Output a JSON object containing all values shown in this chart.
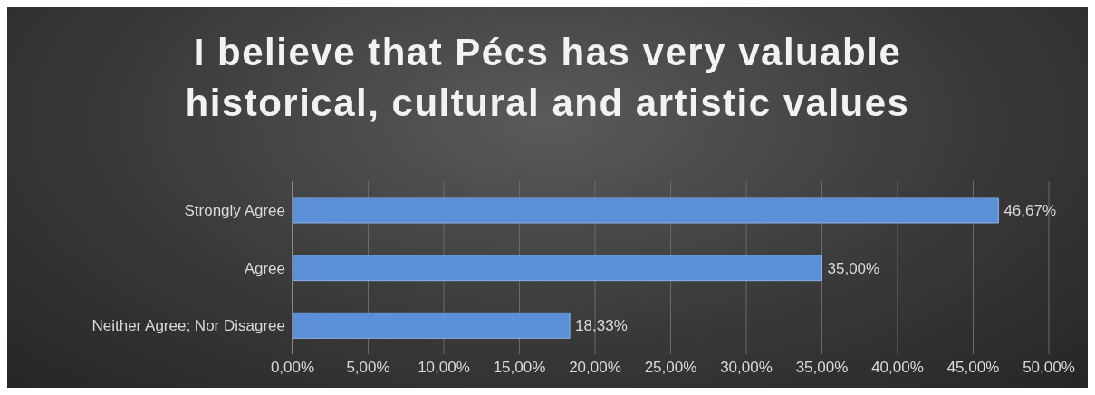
{
  "chart_data": {
    "type": "bar",
    "orientation": "horizontal",
    "title": "I believe that Pécs has very valuable historical, cultural and artistic values",
    "categories": [
      "Strongly Agree",
      "Agree",
      "Neither Agree; Nor Disagree"
    ],
    "values": [
      46.67,
      35.0,
      18.33
    ],
    "value_labels": [
      "46,67%",
      "35,00%",
      "18,33%"
    ],
    "color": "#5b8fd6",
    "xlim": [
      0,
      50
    ],
    "xticks": [
      {
        "value": 0,
        "label": "0,00%"
      },
      {
        "value": 5,
        "label": "5,00%"
      },
      {
        "value": 10,
        "label": "10,00%"
      },
      {
        "value": 15,
        "label": "15,00%"
      },
      {
        "value": 20,
        "label": "20,00%"
      },
      {
        "value": 25,
        "label": "25,00%"
      },
      {
        "value": 30,
        "label": "30,00%"
      },
      {
        "value": 35,
        "label": "35,00%"
      },
      {
        "value": 40,
        "label": "40,00%"
      },
      {
        "value": 45,
        "label": "45,00%"
      },
      {
        "value": 50,
        "label": "50,00%"
      }
    ],
    "grid": "x"
  }
}
